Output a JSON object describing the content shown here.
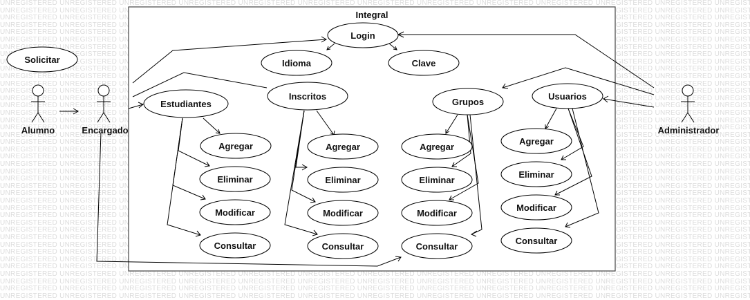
{
  "watermark_text": "UNREGISTERED",
  "system": {
    "title": "Integral"
  },
  "actors": {
    "alumno": "Alumno",
    "encargado": "Encargado",
    "administrador": "Administrador"
  },
  "use_cases": {
    "solicitar": "Solicitar",
    "login": "Login",
    "idioma": "Idioma",
    "clave": "Clave",
    "estudiantes": "Estudiantes",
    "inscritos": "Inscritos",
    "grupos": "Grupos",
    "usuarios": "Usuarios",
    "est_agregar": "Agregar",
    "est_eliminar": "Eliminar",
    "est_modificar": "Modificar",
    "est_consultar": "Consultar",
    "ins_agregar": "Agregar",
    "ins_eliminar": "Eliminar",
    "ins_modificar": "Modificar",
    "ins_consultar": "Consultar",
    "gru_agregar": "Agregar",
    "gru_eliminar": "Eliminar",
    "gru_modificar": "Modificar",
    "gru_consultar": "Consultar",
    "usu_agregar": "Agregar",
    "usu_eliminar": "Eliminar",
    "usu_modificar": "Modificar",
    "usu_consultar": "Consultar"
  }
}
